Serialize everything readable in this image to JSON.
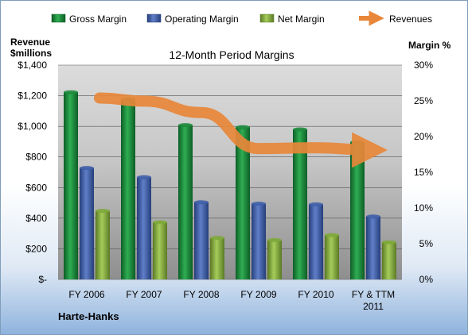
{
  "chart_data": {
    "type": "bar",
    "title": "12-Month Period Margins",
    "company": "Harte-Hanks",
    "y_left_label_line1": "Revenue",
    "y_left_label_line2": "$millions",
    "y_right_label": "Margin %",
    "categories": [
      [
        "FY 2006"
      ],
      [
        "FY 2007"
      ],
      [
        "FY 2008"
      ],
      [
        "FY 2009"
      ],
      [
        "FY 2010"
      ],
      [
        "FY & TTM",
        "2011"
      ]
    ],
    "y_left": {
      "min": 0,
      "max": 1400,
      "ticks": [
        0,
        200,
        400,
        600,
        800,
        1000,
        1200,
        1400
      ],
      "tick_labels": [
        "$-",
        "$200",
        "$400",
        "$600",
        "$800",
        "$1,000",
        "$1,200",
        "$1,400"
      ]
    },
    "y_right": {
      "min": 0,
      "max": 30,
      "ticks": [
        0,
        5,
        10,
        15,
        20,
        25,
        30
      ],
      "tick_labels": [
        "0%",
        "5%",
        "10%",
        "15%",
        "20%",
        "25%",
        "30%"
      ]
    },
    "series": [
      {
        "name": "Gross Margin",
        "type": "bar",
        "axis": "right",
        "color": "#1e8a3c",
        "values": [
          26.2,
          25.2,
          21.6,
          21.3,
          21.0,
          19.2
        ]
      },
      {
        "name": "Operating Margin",
        "type": "bar",
        "axis": "right",
        "color": "#3f5fa8",
        "values": [
          15.6,
          14.3,
          10.8,
          10.6,
          10.5,
          8.8
        ]
      },
      {
        "name": "Net Margin",
        "type": "bar",
        "axis": "right",
        "color": "#7ea83a",
        "values": [
          9.6,
          8.0,
          5.8,
          5.5,
          6.2,
          5.2
        ]
      },
      {
        "name": "Revenues",
        "type": "line",
        "axis": "left",
        "color": "#e8873a",
        "values": [
          1185,
          1165,
          1090,
          855,
          860,
          845
        ]
      }
    ],
    "grid": true,
    "legend_position": "top"
  }
}
